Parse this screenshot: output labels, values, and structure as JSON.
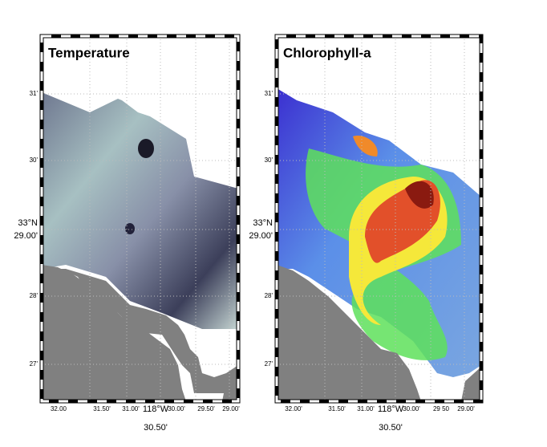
{
  "panels": [
    {
      "title": "Temperature",
      "y_labels": [
        "31'",
        "30'",
        "33°N",
        "29.00'",
        "28'",
        "27'"
      ],
      "x_labels": [
        "32.00",
        "31.50'",
        "31.00'",
        "118°W",
        "30.50'",
        "30.00'",
        "29.50'",
        "29.00'"
      ]
    },
    {
      "title": "Chlorophyll-a",
      "y_labels": [
        "31'",
        "30'",
        "33°N",
        "29.00'",
        "28'",
        "27'"
      ],
      "x_labels": [
        "32.00'",
        "31.50'",
        "31.00'",
        "118°W",
        "30.50'",
        "30.00'",
        "29 50",
        "29.00'"
      ]
    }
  ]
}
